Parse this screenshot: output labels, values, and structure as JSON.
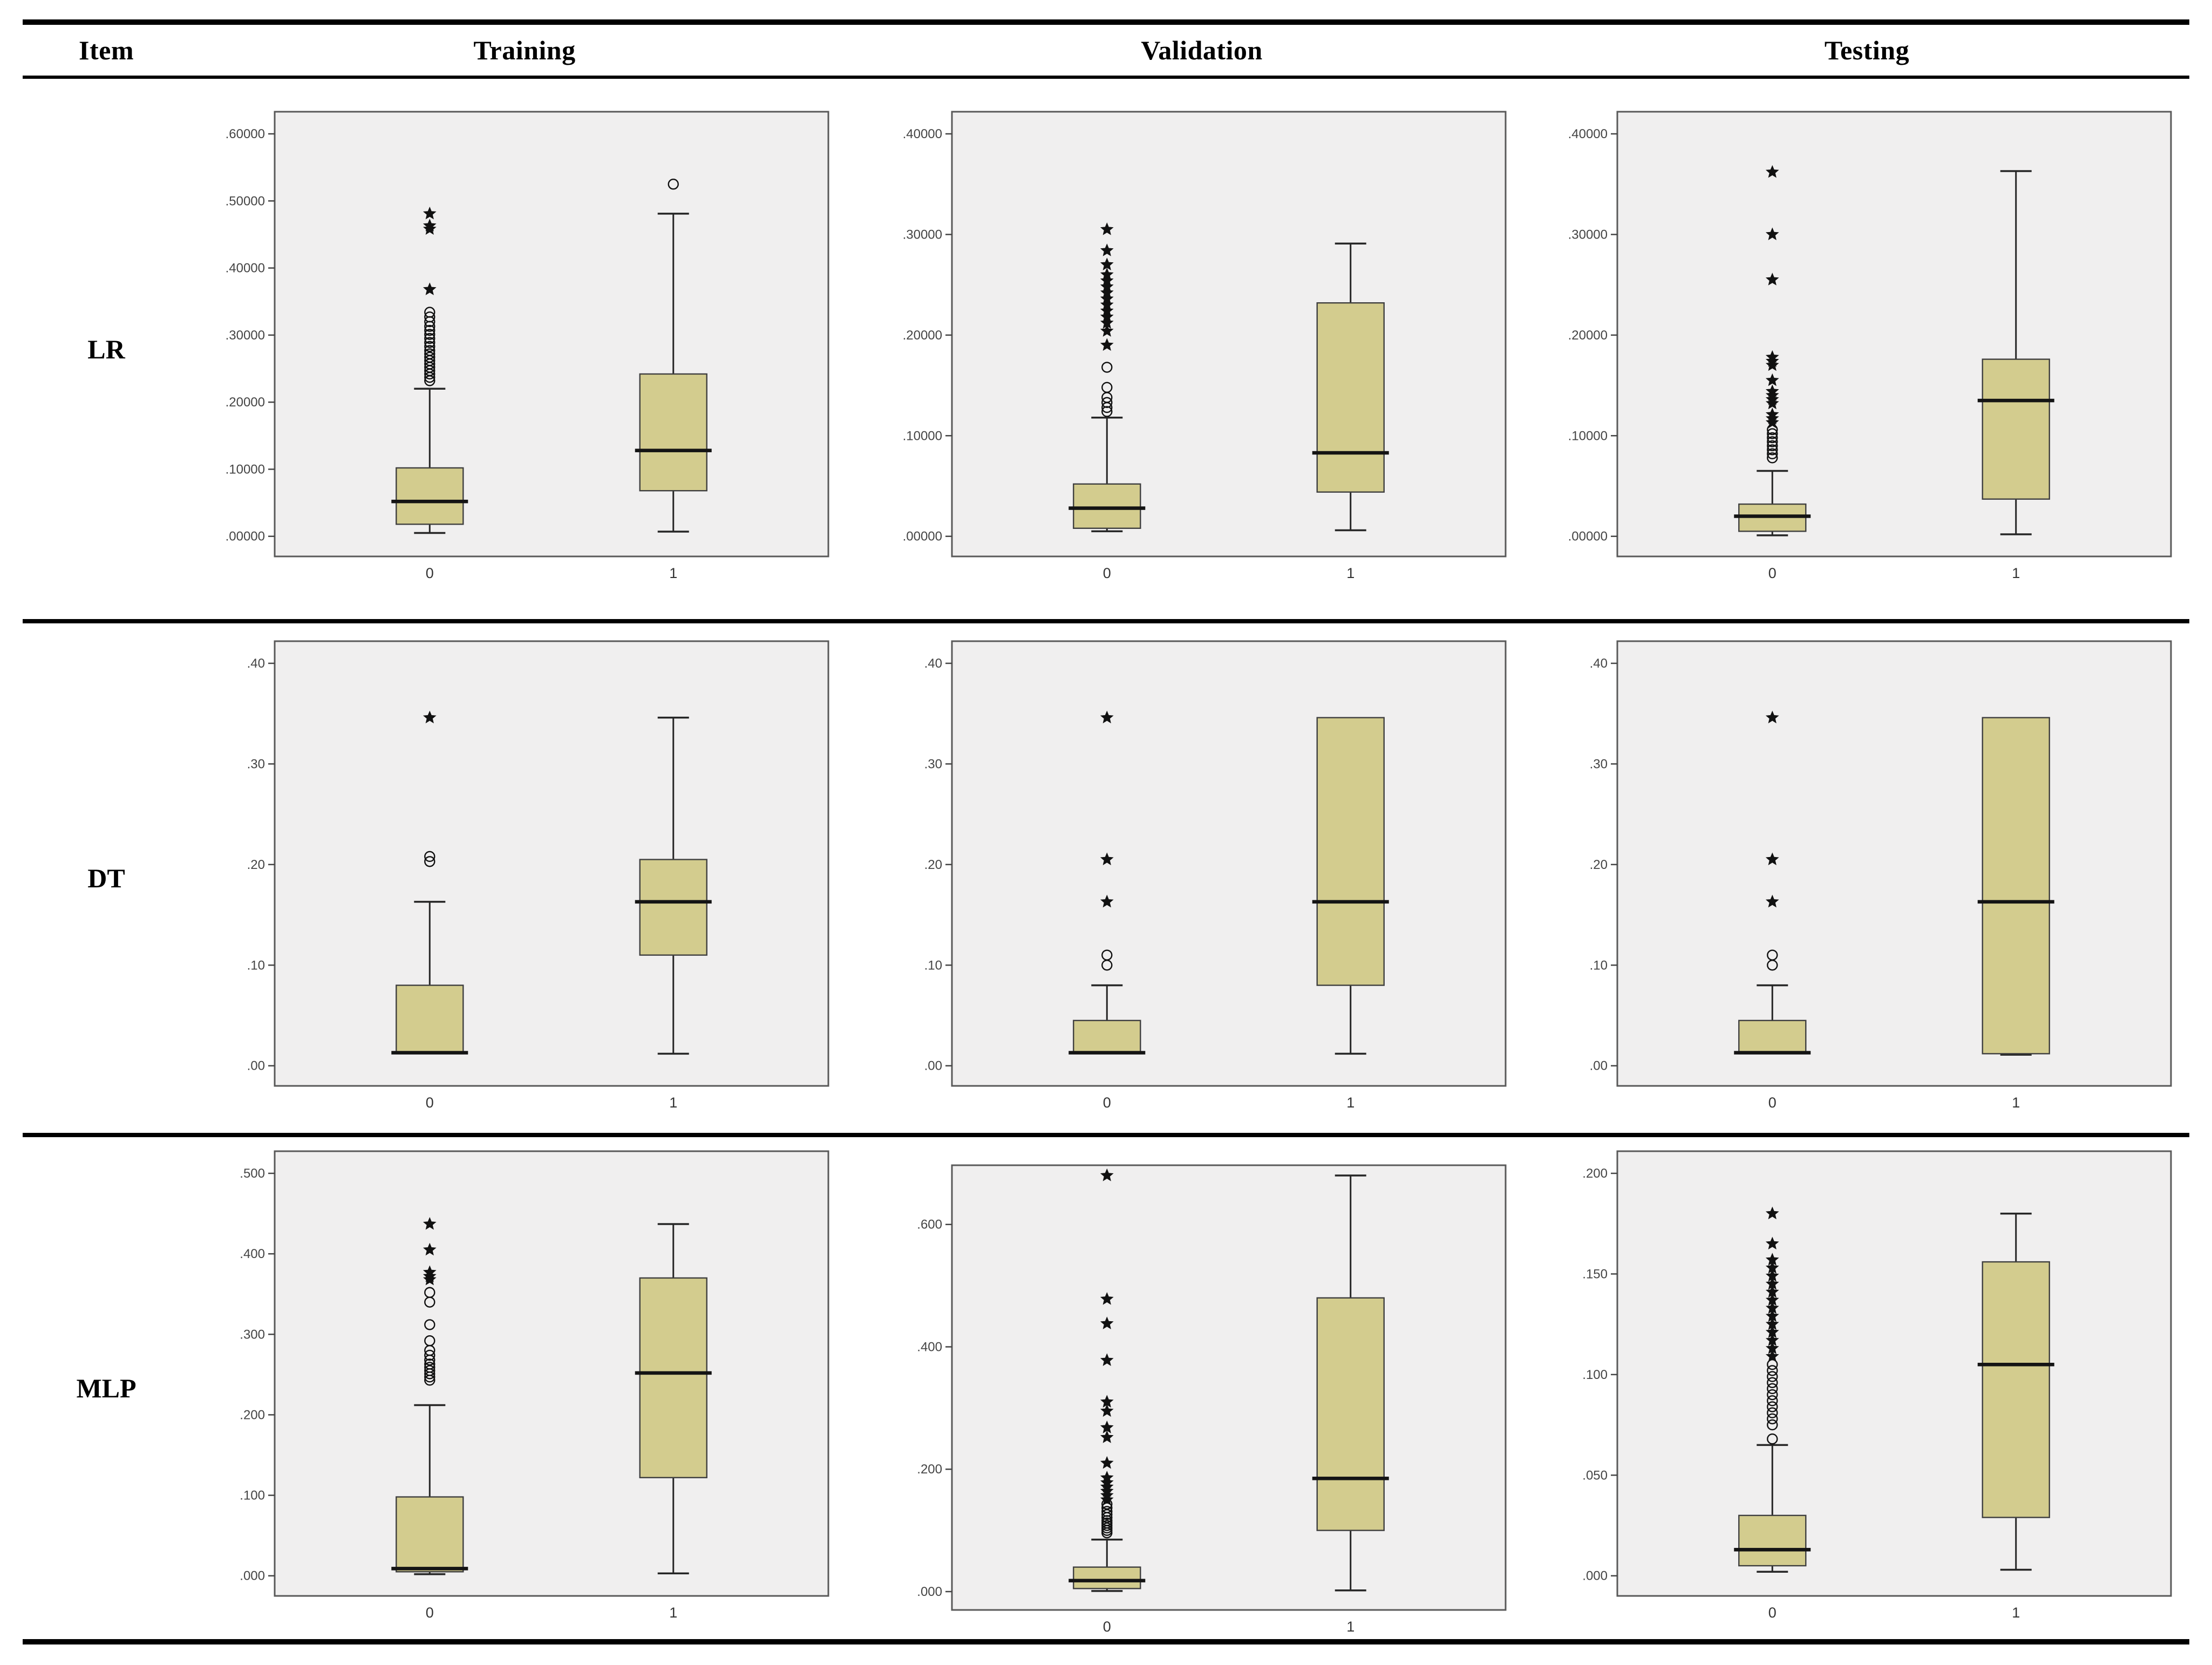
{
  "header": {
    "item": "Item",
    "training": "Training",
    "validation": "Validation",
    "testing": "Testing"
  },
  "colors": {
    "box_fill": "#d3cc8e",
    "box_stroke": "#3f3f3f",
    "plot_bg": "#f0efef",
    "plot_border": "#595959",
    "median": "#141414",
    "whisker": "#262626",
    "tick_text": "#444444",
    "outlier": "#111111"
  },
  "chart_data": {
    "type": "boxplot-grid",
    "note": "SPSS-style grouped box plots; x categories 0 and 1; grid off; no legend",
    "rows": [
      {
        "label": "LR",
        "charts": [
          {
            "column": "Training",
            "ticks": [
              {
                "label": ".00000",
                "v": 0.0
              },
              {
                "label": ".10000",
                "v": 0.1
              },
              {
                "label": ".20000",
                "v": 0.2
              },
              {
                "label": ".30000",
                "v": 0.3
              },
              {
                "label": ".40000",
                "v": 0.4
              },
              {
                "label": ".50000",
                "v": 0.5
              },
              {
                "label": ".60000",
                "v": 0.6
              }
            ],
            "boxes": [
              {
                "category": "0",
                "whisker_low": 0.005,
                "q1": 0.018,
                "median": 0.052,
                "q3": 0.102,
                "whisker_high": 0.22,
                "outliers_circle": [
                  0.232,
                  0.237,
                  0.242,
                  0.247,
                  0.252,
                  0.257,
                  0.262,
                  0.267,
                  0.272,
                  0.277,
                  0.283,
                  0.289,
                  0.295,
                  0.301,
                  0.307,
                  0.313,
                  0.32,
                  0.327,
                  0.334
                ],
                "outliers_star": [
                  0.368,
                  0.458,
                  0.463,
                  0.481
                ]
              },
              {
                "category": "1",
                "whisker_low": 0.007,
                "q1": 0.068,
                "median": 0.128,
                "q3": 0.242,
                "whisker_high": 0.481,
                "outliers_circle": [
                  0.525
                ],
                "outliers_star": []
              }
            ]
          },
          {
            "column": "Validation",
            "ticks": [
              {
                "label": ".00000",
                "v": 0.0
              },
              {
                "label": ".10000",
                "v": 0.1
              },
              {
                "label": ".20000",
                "v": 0.2
              },
              {
                "label": ".30000",
                "v": 0.3
              },
              {
                "label": ".40000",
                "v": 0.4
              }
            ],
            "boxes": [
              {
                "category": "0",
                "whisker_low": 0.005,
                "q1": 0.008,
                "median": 0.028,
                "q3": 0.052,
                "whisker_high": 0.118,
                "outliers_circle": [
                  0.124,
                  0.128,
                  0.133,
                  0.138,
                  0.148,
                  0.168
                ],
                "outliers_star": [
                  0.19,
                  0.204,
                  0.212,
                  0.218,
                  0.224,
                  0.23,
                  0.236,
                  0.242,
                  0.248,
                  0.254,
                  0.26,
                  0.27,
                  0.284,
                  0.305
                ]
              },
              {
                "category": "1",
                "whisker_low": 0.006,
                "q1": 0.044,
                "median": 0.083,
                "q3": 0.232,
                "whisker_high": 0.291,
                "outliers_circle": [],
                "outliers_star": []
              }
            ]
          },
          {
            "column": "Testing",
            "ticks": [
              {
                "label": ".00000",
                "v": 0.0
              },
              {
                "label": ".10000",
                "v": 0.1
              },
              {
                "label": ".20000",
                "v": 0.2
              },
              {
                "label": ".30000",
                "v": 0.3
              },
              {
                "label": ".40000",
                "v": 0.4
              }
            ],
            "boxes": [
              {
                "category": "0",
                "whisker_low": 0.001,
                "q1": 0.005,
                "median": 0.02,
                "q3": 0.032,
                "whisker_high": 0.065,
                "outliers_circle": [
                  0.078,
                  0.082,
                  0.086,
                  0.09,
                  0.094,
                  0.098,
                  0.102,
                  0.106
                ],
                "outliers_star": [
                  0.113,
                  0.117,
                  0.121,
                  0.132,
                  0.136,
                  0.14,
                  0.144,
                  0.155,
                  0.17,
                  0.174,
                  0.178,
                  0.255,
                  0.3,
                  0.362
                ]
              },
              {
                "category": "1",
                "whisker_low": 0.002,
                "q1": 0.037,
                "median": 0.135,
                "q3": 0.176,
                "whisker_high": 0.363,
                "outliers_circle": [],
                "outliers_star": []
              }
            ]
          }
        ]
      },
      {
        "label": "DT",
        "charts": [
          {
            "column": "Training",
            "ticks": [
              {
                "label": ".00",
                "v": 0.0
              },
              {
                "label": ".10",
                "v": 0.1
              },
              {
                "label": ".20",
                "v": 0.2
              },
              {
                "label": ".30",
                "v": 0.3
              },
              {
                "label": ".40",
                "v": 0.4
              }
            ],
            "boxes": [
              {
                "category": "0",
                "whisker_low": null,
                "q1": 0.012,
                "median": 0.013,
                "q3": 0.08,
                "whisker_high": 0.163,
                "outliers_circle": [
                  0.203,
                  0.208
                ],
                "outliers_star": [
                  0.346
                ]
              },
              {
                "category": "1",
                "whisker_low": 0.012,
                "q1": 0.11,
                "median": 0.163,
                "q3": 0.205,
                "whisker_high": 0.346,
                "outliers_circle": [],
                "outliers_star": []
              }
            ]
          },
          {
            "column": "Validation",
            "ticks": [
              {
                "label": ".00",
                "v": 0.0
              },
              {
                "label": ".10",
                "v": 0.1
              },
              {
                "label": ".20",
                "v": 0.2
              },
              {
                "label": ".30",
                "v": 0.3
              },
              {
                "label": ".40",
                "v": 0.4
              }
            ],
            "boxes": [
              {
                "category": "0",
                "whisker_low": null,
                "q1": 0.012,
                "median": 0.013,
                "q3": 0.045,
                "whisker_high": 0.08,
                "outliers_circle": [
                  0.1,
                  0.11
                ],
                "outliers_star": [
                  0.163,
                  0.205,
                  0.346
                ]
              },
              {
                "category": "1",
                "whisker_low": 0.012,
                "q1": 0.08,
                "median": 0.163,
                "q3": 0.346,
                "whisker_high": null,
                "outliers_circle": [],
                "outliers_star": []
              }
            ]
          },
          {
            "column": "Testing",
            "ticks": [
              {
                "label": ".00",
                "v": 0.0
              },
              {
                "label": ".10",
                "v": 0.1
              },
              {
                "label": ".20",
                "v": 0.2
              },
              {
                "label": ".30",
                "v": 0.3
              },
              {
                "label": ".40",
                "v": 0.4
              }
            ],
            "boxes": [
              {
                "category": "0",
                "whisker_low": null,
                "q1": 0.012,
                "median": 0.013,
                "q3": 0.045,
                "whisker_high": 0.08,
                "outliers_circle": [
                  0.1,
                  0.11
                ],
                "outliers_star": [
                  0.163,
                  0.205,
                  0.346
                ]
              },
              {
                "category": "1",
                "whisker_low": 0.011,
                "q1": 0.012,
                "median": 0.163,
                "q3": 0.346,
                "whisker_high": null,
                "outliers_circle": [],
                "outliers_star": []
              }
            ]
          }
        ]
      },
      {
        "label": "MLP",
        "charts": [
          {
            "column": "Training",
            "ticks": [
              {
                "label": ".000",
                "v": 0.0
              },
              {
                "label": ".100",
                "v": 0.1
              },
              {
                "label": ".200",
                "v": 0.2
              },
              {
                "label": ".300",
                "v": 0.3
              },
              {
                "label": ".400",
                "v": 0.4
              },
              {
                "label": ".500",
                "v": 0.5
              }
            ],
            "boxes": [
              {
                "category": "0",
                "whisker_low": 0.002,
                "q1": 0.005,
                "median": 0.009,
                "q3": 0.098,
                "whisker_high": 0.212,
                "outliers_circle": [
                  0.243,
                  0.247,
                  0.251,
                  0.255,
                  0.259,
                  0.263,
                  0.268,
                  0.274,
                  0.28,
                  0.292,
                  0.312,
                  0.34,
                  0.352
                ],
                "outliers_star": [
                  0.368,
                  0.372,
                  0.377,
                  0.405,
                  0.437
                ]
              },
              {
                "category": "1",
                "whisker_low": 0.003,
                "q1": 0.122,
                "median": 0.252,
                "q3": 0.37,
                "whisker_high": 0.437,
                "outliers_circle": [],
                "outliers_star": []
              }
            ]
          },
          {
            "column": "Validation",
            "ticks": [
              {
                "label": ".000",
                "v": 0.0
              },
              {
                "label": ".200",
                "v": 0.2
              },
              {
                "label": ".400",
                "v": 0.4
              },
              {
                "label": ".600",
                "v": 0.6
              }
            ],
            "boxes": [
              {
                "category": "0",
                "whisker_low": 0.001,
                "q1": 0.005,
                "median": 0.018,
                "q3": 0.04,
                "whisker_high": 0.085,
                "outliers_circle": [
                  0.096,
                  0.1,
                  0.104,
                  0.108,
                  0.112,
                  0.116,
                  0.121,
                  0.126,
                  0.131,
                  0.137,
                  0.143
                ],
                "outliers_star": [
                  0.15,
                  0.157,
                  0.164,
                  0.171,
                  0.178,
                  0.186,
                  0.21,
                  0.252,
                  0.268,
                  0.295,
                  0.31,
                  0.378,
                  0.438,
                  0.478,
                  0.68
                ]
              },
              {
                "category": "1",
                "whisker_low": 0.002,
                "q1": 0.1,
                "median": 0.185,
                "q3": 0.48,
                "whisker_high": 0.68,
                "outliers_circle": [],
                "outliers_star": []
              }
            ]
          },
          {
            "column": "Testing",
            "ticks": [
              {
                "label": ".000",
                "v": 0.0
              },
              {
                "label": ".050",
                "v": 0.05
              },
              {
                "label": ".100",
                "v": 0.1
              },
              {
                "label": ".150",
                "v": 0.15
              },
              {
                "label": ".200",
                "v": 0.2
              }
            ],
            "boxes": [
              {
                "category": "0",
                "whisker_low": 0.002,
                "q1": 0.005,
                "median": 0.013,
                "q3": 0.03,
                "whisker_high": 0.065,
                "outliers_circle": [
                  0.068,
                  0.075,
                  0.078,
                  0.081,
                  0.084,
                  0.087,
                  0.09,
                  0.093,
                  0.096,
                  0.099,
                  0.102,
                  0.105
                ],
                "outliers_star": [
                  0.109,
                  0.113,
                  0.117,
                  0.121,
                  0.125,
                  0.129,
                  0.133,
                  0.137,
                  0.141,
                  0.145,
                  0.149,
                  0.153,
                  0.157,
                  0.165,
                  0.18
                ]
              },
              {
                "category": "1",
                "whisker_low": 0.003,
                "q1": 0.029,
                "median": 0.105,
                "q3": 0.156,
                "whisker_high": 0.18,
                "outliers_circle": [],
                "outliers_star": []
              }
            ]
          }
        ]
      }
    ]
  }
}
